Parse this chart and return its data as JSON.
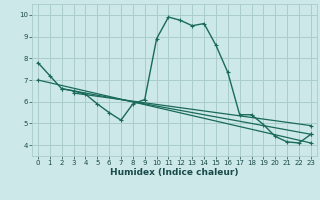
{
  "xlabel": "Humidex (Indice chaleur)",
  "ylabel": "",
  "bg_color": "#cce8e8",
  "grid_color": "#aacccc",
  "line_color": "#1a6a5a",
  "xlim": [
    -0.5,
    23.5
  ],
  "ylim": [
    3.5,
    10.5
  ],
  "xticks": [
    0,
    1,
    2,
    3,
    4,
    5,
    6,
    7,
    8,
    9,
    10,
    11,
    12,
    13,
    14,
    15,
    16,
    17,
    18,
    19,
    20,
    21,
    22,
    23
  ],
  "yticks": [
    4,
    5,
    6,
    7,
    8,
    9,
    10
  ],
  "main_x": [
    0,
    1,
    2,
    3,
    4,
    5,
    6,
    7,
    8,
    9,
    10,
    11,
    12,
    13,
    14,
    15,
    16,
    17,
    18,
    19,
    20,
    21,
    22,
    23
  ],
  "main_y": [
    7.8,
    7.2,
    6.6,
    6.5,
    6.35,
    5.9,
    5.5,
    5.15,
    5.9,
    6.1,
    8.9,
    9.9,
    9.75,
    9.5,
    9.6,
    8.6,
    7.35,
    5.4,
    5.4,
    4.95,
    4.4,
    4.15,
    4.1,
    4.5
  ],
  "line2_x": [
    0,
    23
  ],
  "line2_y": [
    7.0,
    4.1
  ],
  "line3_x": [
    2,
    23
  ],
  "line3_y": [
    6.6,
    4.5
  ],
  "line4_x": [
    3,
    23
  ],
  "line4_y": [
    6.4,
    4.9
  ]
}
